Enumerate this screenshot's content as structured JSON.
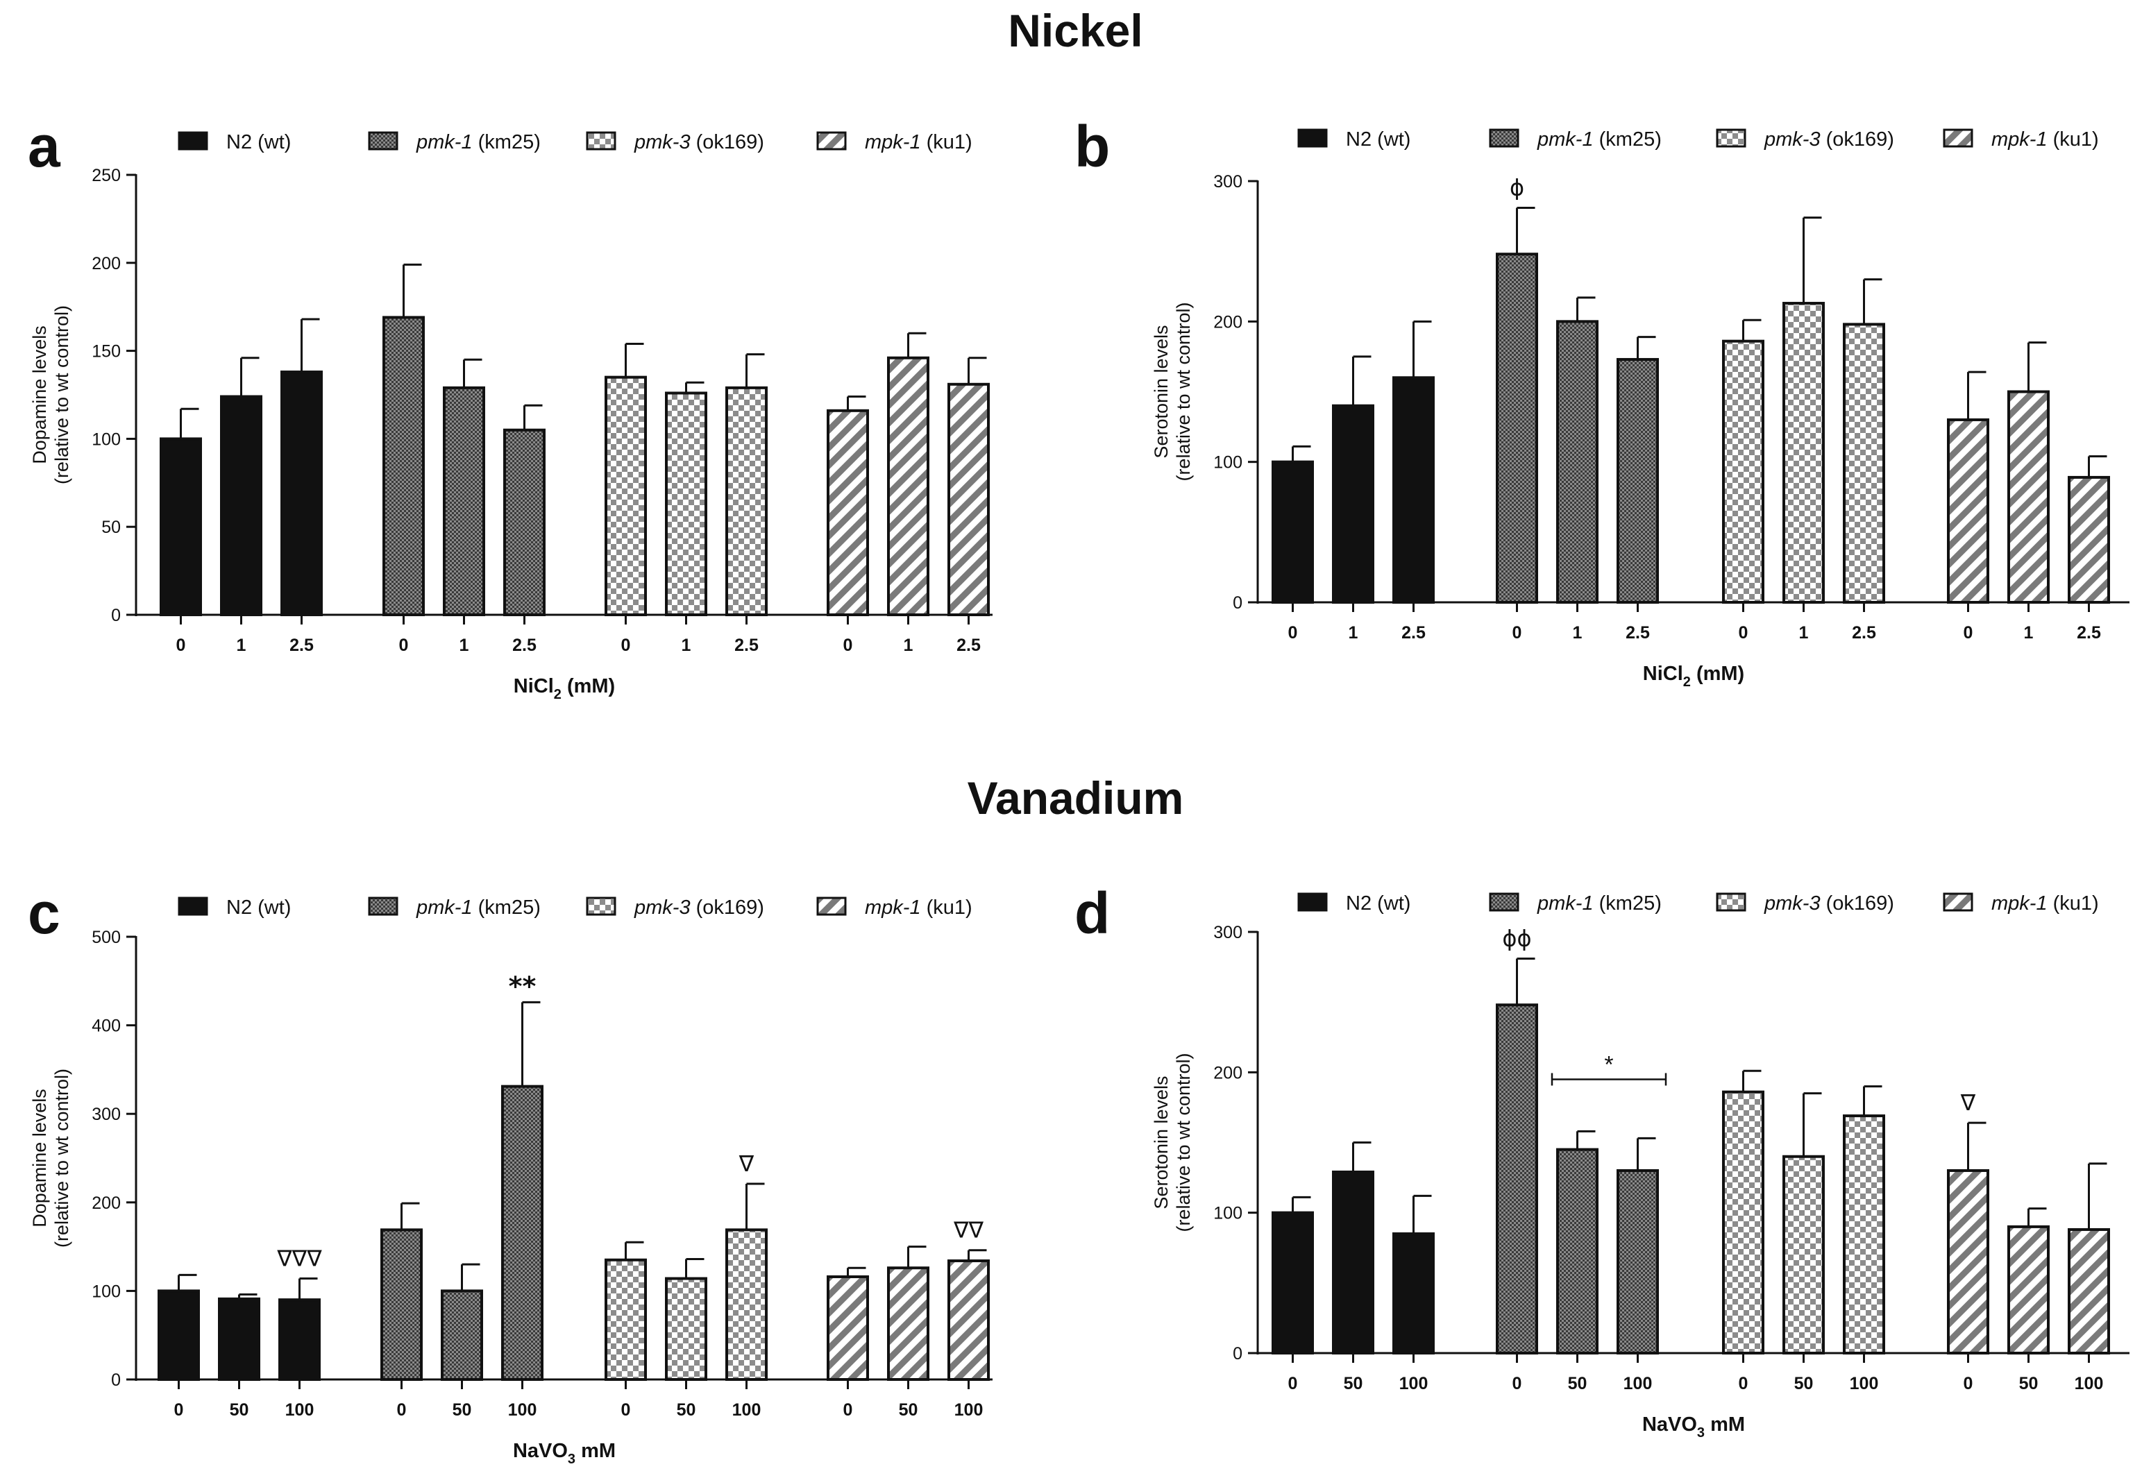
{
  "sections": {
    "nickel_title": "Nickel",
    "vanadium_title": "Vanadium"
  },
  "colors": {
    "bar_fill": "#111111",
    "axis": "#111111",
    "pattern_light": "#ffffff",
    "pattern_mid": "#9a9a9a"
  },
  "groups": [
    {
      "name": "N2",
      "style": "italic-none",
      "label_prefix": "",
      "label_main": "N2 (wt)",
      "pattern": "solid"
    },
    {
      "name": "pmk-1",
      "label_prefix": "pmk-1",
      "label_main": " (km25)",
      "pattern": "dense"
    },
    {
      "name": "pmk-3",
      "label_prefix": "pmk-3",
      "label_main": " (ok169)",
      "pattern": "check"
    },
    {
      "name": "mpk-1",
      "label_prefix": "mpk-1",
      "label_main": " (ku1)",
      "pattern": "diag"
    }
  ],
  "chart_data": [
    {
      "panel": "a",
      "type": "bar",
      "title": "",
      "ylabel_line1": "Dopamine levels",
      "ylabel_line2": "(relative to wt control)",
      "xlabel_main": "NiCl",
      "xlabel_sub": "2",
      "xlabel_tail": " (mM)",
      "ylim": [
        0,
        250
      ],
      "yticks": [
        0,
        50,
        100,
        150,
        200,
        250
      ],
      "categories": [
        "0",
        "1",
        "2.5"
      ],
      "series": [
        {
          "name": "N2 (wt)",
          "values": [
            100,
            124,
            138
          ],
          "errors": [
            17,
            22,
            30
          ],
          "annotations": [
            "",
            "",
            ""
          ]
        },
        {
          "name": "pmk-1 (km25)",
          "values": [
            169,
            129,
            105
          ],
          "errors": [
            30,
            16,
            14
          ],
          "annotations": [
            "",
            "",
            ""
          ]
        },
        {
          "name": "pmk-3 (ok169)",
          "values": [
            135,
            126,
            129
          ],
          "errors": [
            19,
            6,
            19
          ],
          "annotations": [
            "",
            "",
            ""
          ]
        },
        {
          "name": "mpk-1 (ku1)",
          "values": [
            116,
            146,
            131
          ],
          "errors": [
            8,
            14,
            15
          ],
          "annotations": [
            "",
            "",
            ""
          ]
        }
      ],
      "bracket": null
    },
    {
      "panel": "b",
      "type": "bar",
      "title": "",
      "ylabel_line1": "Serotonin levels",
      "ylabel_line2": "(relative to wt control)",
      "xlabel_main": "NiCl",
      "xlabel_sub": "2",
      "xlabel_tail": " (mM)",
      "ylim": [
        0,
        300
      ],
      "yticks": [
        0,
        100,
        200,
        300
      ],
      "categories": [
        "0",
        "1",
        "2.5"
      ],
      "series": [
        {
          "name": "N2 (wt)",
          "values": [
            100,
            140,
            160
          ],
          "errors": [
            11,
            35,
            40
          ],
          "annotations": [
            "",
            "",
            ""
          ]
        },
        {
          "name": "pmk-1 (km25)",
          "values": [
            248,
            200,
            173
          ],
          "errors": [
            33,
            17,
            16
          ],
          "annotations": [
            "ϕ",
            "",
            ""
          ]
        },
        {
          "name": "pmk-3 (ok169)",
          "values": [
            186,
            213,
            198
          ],
          "errors": [
            15,
            61,
            32
          ],
          "annotations": [
            "",
            "",
            ""
          ]
        },
        {
          "name": "mpk-1 (ku1)",
          "values": [
            130,
            150,
            89
          ],
          "errors": [
            34,
            35,
            15
          ],
          "annotations": [
            "",
            "",
            ""
          ]
        }
      ],
      "bracket": null
    },
    {
      "panel": "c",
      "type": "bar",
      "title": "",
      "ylabel_line1": "Dopamine levels",
      "ylabel_line2": "(relative to wt control)",
      "xlabel_main": "NaVO",
      "xlabel_sub": "3",
      "xlabel_tail": " mM",
      "ylim": [
        0,
        500
      ],
      "yticks": [
        0,
        100,
        200,
        300,
        400,
        500
      ],
      "categories": [
        "0",
        "50",
        "100"
      ],
      "series": [
        {
          "name": "N2 (wt)",
          "values": [
            100,
            91,
            90
          ],
          "errors": [
            18,
            5,
            24
          ],
          "annotations": [
            "",
            "",
            "∇∇∇"
          ]
        },
        {
          "name": "pmk-1 (km25)",
          "values": [
            169,
            100,
            331
          ],
          "errors": [
            30,
            30,
            95
          ],
          "annotations": [
            "",
            "",
            "**"
          ]
        },
        {
          "name": "pmk-3 (ok169)",
          "values": [
            135,
            114,
            169
          ],
          "errors": [
            20,
            22,
            52
          ],
          "annotations": [
            "",
            "",
            "∇"
          ]
        },
        {
          "name": "mpk-1 (ku1)",
          "values": [
            116,
            126,
            134
          ],
          "errors": [
            10,
            24,
            12
          ],
          "annotations": [
            "",
            "",
            "∇∇"
          ]
        }
      ],
      "bracket": null
    },
    {
      "panel": "d",
      "type": "bar",
      "title": "",
      "ylabel_line1": "Serotonin levels",
      "ylabel_line2": "(relative to wt control)",
      "xlabel_main": "NaVO",
      "xlabel_sub": "3",
      "xlabel_tail": " mM",
      "ylim": [
        0,
        300
      ],
      "yticks": [
        0,
        100,
        200,
        300
      ],
      "categories": [
        "0",
        "50",
        "100"
      ],
      "series": [
        {
          "name": "N2 (wt)",
          "values": [
            100,
            129,
            85
          ],
          "errors": [
            11,
            21,
            27
          ],
          "annotations": [
            "",
            "",
            ""
          ]
        },
        {
          "name": "pmk-1 (km25)",
          "values": [
            248,
            145,
            130
          ],
          "errors": [
            33,
            13,
            23
          ],
          "annotations": [
            "ϕϕ",
            "",
            ""
          ]
        },
        {
          "name": "pmk-3 (ok169)",
          "values": [
            186,
            140,
            169
          ],
          "errors": [
            15,
            45,
            21
          ],
          "annotations": [
            "",
            "",
            ""
          ]
        },
        {
          "name": "mpk-1 (ku1)",
          "values": [
            130,
            90,
            88
          ],
          "errors": [
            34,
            13,
            47
          ],
          "annotations": [
            "∇",
            "",
            ""
          ]
        }
      ],
      "bracket": {
        "series": 1,
        "from": 1,
        "to": 2,
        "label": "*"
      }
    }
  ]
}
